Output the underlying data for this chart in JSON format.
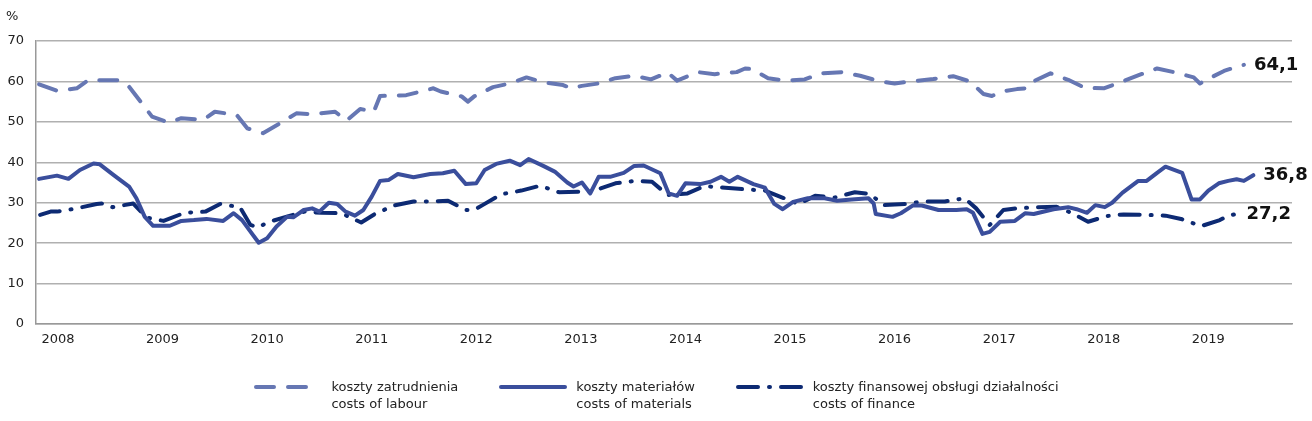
{
  "chart_data": {
    "type": "line",
    "ylabel": "%",
    "xlim": [
      2007.79,
      2019.8
    ],
    "xticks": [
      2008,
      2009,
      2010,
      2011,
      2012,
      2013,
      2014,
      2015,
      2016,
      2017,
      2018,
      2019
    ],
    "ylim": [
      0,
      70
    ],
    "yticks": [
      0,
      10,
      20,
      30,
      40,
      50,
      60,
      70
    ],
    "grid": "y",
    "legend": "bottom",
    "marker": "none",
    "series": [
      {
        "name": "koszty zatrudnienia\ncosts of labour",
        "color": "#6677b3",
        "line_style": "dashed",
        "x": [
          2007.82,
          2007.99,
          2008.18,
          2008.29,
          2008.58,
          2008.68,
          2008.79,
          2008.9,
          2009.06,
          2009.18,
          2009.39,
          2009.5,
          2009.71,
          2009.81,
          2009.96,
          2010.12,
          2010.28,
          2010.44,
          2010.65,
          2010.76,
          2010.89,
          2011.02,
          2011.08,
          2011.33,
          2011.59,
          2011.66,
          2011.86,
          2011.92,
          2011.98,
          2012.16,
          2012.32,
          2012.48,
          2012.64,
          2012.83,
          2012.91,
          2013.01,
          2013.17,
          2013.33,
          2013.51,
          2013.67,
          2013.83,
          2013.92,
          2014.12,
          2014.28,
          2014.49,
          2014.57,
          2014.63,
          2014.79,
          2014.95,
          2015.14,
          2015.3,
          2015.49,
          2015.67,
          2015.86,
          2016.0,
          2016.19,
          2016.37,
          2016.56,
          2016.72,
          2016.85,
          2016.93,
          2017.02,
          2017.17,
          2017.26,
          2017.31,
          2017.49,
          2017.66,
          2017.82,
          2018.0,
          2018.16,
          2018.34,
          2018.51,
          2018.67,
          2018.86,
          2018.92,
          2018.99,
          2019.15,
          2019.27,
          2019.34
        ],
        "values": [
          59.3,
          57.7,
          58.3,
          60.3,
          60.3,
          58.7,
          55.0,
          51.3,
          49.8,
          50.9,
          50.5,
          52.5,
          51.7,
          48.4,
          47.2,
          49.6,
          52.1,
          51.9,
          52.5,
          50.3,
          53.2,
          52.5,
          56.4,
          56.6,
          58.3,
          57.5,
          56.3,
          55.0,
          56.3,
          58.6,
          59.5,
          61.0,
          59.8,
          59.1,
          58.3,
          58.9,
          59.5,
          60.8,
          61.4,
          60.5,
          62.2,
          60.2,
          62.3,
          61.8,
          62.3,
          63.2,
          63.1,
          60.8,
          60.2,
          60.5,
          62.0,
          62.3,
          61.4,
          60.0,
          59.5,
          60.1,
          60.6,
          61.3,
          60.0,
          56.9,
          56.4,
          57.5,
          58.1,
          58.3,
          59.8,
          62.0,
          60.4,
          58.4,
          58.3,
          59.8,
          61.6,
          63.2,
          62.3,
          61.0,
          59.5,
          60.5,
          62.6,
          63.6,
          64.1
        ]
      },
      {
        "name": "koszty materiałów\ncosts of materials",
        "color": "#3a4e9c",
        "line_style": "solid",
        "x": [
          2007.82,
          2007.99,
          2008.1,
          2008.21,
          2008.34,
          2008.4,
          2008.53,
          2008.68,
          2008.75,
          2008.83,
          2008.91,
          2009.07,
          2009.18,
          2009.3,
          2009.42,
          2009.58,
          2009.68,
          2009.76,
          2009.92,
          2010.0,
          2010.09,
          2010.19,
          2010.25,
          2010.35,
          2010.43,
          2010.5,
          2010.59,
          2010.67,
          2010.75,
          2010.84,
          2010.92,
          2011.0,
          2011.08,
          2011.16,
          2011.25,
          2011.4,
          2011.56,
          2011.68,
          2011.79,
          2011.9,
          2012.0,
          2012.08,
          2012.19,
          2012.32,
          2012.42,
          2012.5,
          2012.64,
          2012.75,
          2012.87,
          2012.93,
          2013.01,
          2013.09,
          2013.17,
          2013.28,
          2013.41,
          2013.51,
          2013.6,
          2013.76,
          2013.84,
          2013.92,
          2014.0,
          2014.14,
          2014.24,
          2014.34,
          2014.42,
          2014.5,
          2014.65,
          2014.76,
          2014.85,
          2014.93,
          2015.03,
          2015.17,
          2015.33,
          2015.45,
          2015.59,
          2015.75,
          2015.8,
          2015.82,
          2015.98,
          2016.06,
          2016.18,
          2016.26,
          2016.42,
          2016.59,
          2016.69,
          2016.75,
          2016.84,
          2016.91,
          2017.01,
          2017.15,
          2017.25,
          2017.33,
          2017.52,
          2017.66,
          2017.74,
          2017.84,
          2017.92,
          2018.01,
          2018.08,
          2018.18,
          2018.33,
          2018.41,
          2018.51,
          2018.59,
          2018.75,
          2018.84,
          2018.92,
          2019.0,
          2019.1,
          2019.19,
          2019.27,
          2019.34,
          2019.43
        ],
        "values": [
          35.9,
          36.7,
          35.9,
          38.1,
          39.7,
          39.5,
          36.9,
          34.0,
          31.1,
          26.5,
          24.3,
          24.3,
          25.5,
          25.7,
          26.0,
          25.5,
          27.4,
          25.7,
          20.1,
          21.2,
          24.1,
          26.5,
          26.4,
          28.2,
          28.6,
          27.8,
          30.0,
          29.7,
          27.8,
          26.8,
          28.2,
          31.5,
          35.4,
          35.6,
          37.1,
          36.3,
          37.1,
          37.3,
          37.9,
          34.6,
          34.8,
          38.1,
          39.6,
          40.4,
          39.3,
          40.8,
          39.1,
          37.7,
          35.0,
          34.0,
          35.0,
          32.3,
          36.4,
          36.4,
          37.4,
          39.1,
          39.2,
          37.3,
          32.3,
          31.7,
          34.8,
          34.6,
          35.2,
          36.4,
          35.2,
          36.4,
          34.6,
          33.7,
          29.7,
          28.4,
          30.2,
          31.1,
          31.1,
          30.5,
          30.8,
          31.1,
          29.8,
          27.2,
          26.5,
          27.4,
          29.4,
          29.3,
          28.2,
          28.2,
          28.4,
          27.5,
          22.3,
          22.8,
          25.3,
          25.5,
          27.4,
          27.2,
          28.4,
          28.9,
          28.4,
          27.5,
          29.4,
          28.9,
          30.0,
          32.5,
          35.4,
          35.4,
          37.4,
          38.9,
          37.4,
          30.8,
          30.8,
          33.0,
          34.8,
          35.4,
          35.8,
          35.4,
          36.8
        ]
      },
      {
        "name": "koszty finansowej obsługi działalności\ncosts of finance",
        "color": "#0d2a73",
        "line_style": "dashdot",
        "x": [
          2007.83,
          2007.93,
          2007.99,
          2008.18,
          2008.37,
          2008.42,
          2008.52,
          2008.72,
          2008.85,
          2009.01,
          2009.21,
          2009.41,
          2009.55,
          2009.74,
          2009.84,
          2009.92,
          2010.0,
          2010.18,
          2010.36,
          2010.52,
          2010.71,
          2010.9,
          2011.03,
          2011.21,
          2011.4,
          2011.56,
          2011.73,
          2011.9,
          2011.98,
          2012.06,
          2012.24,
          2012.43,
          2012.61,
          2012.79,
          2012.98,
          2013.09,
          2013.14,
          2013.33,
          2013.52,
          2013.68,
          2013.83,
          2014.02,
          2014.18,
          2014.38,
          2014.58,
          2014.76,
          2015.08,
          2015.24,
          2015.43,
          2015.62,
          2015.76,
          2015.9,
          2016.11,
          2016.27,
          2016.48,
          2016.67,
          2016.78,
          2016.91,
          2017.04,
          2017.17,
          2017.37,
          2017.55,
          2017.69,
          2017.85,
          2018.03,
          2018.19,
          2018.39,
          2018.59,
          2018.75,
          2018.93,
          2019.11,
          2019.19,
          2019.27
        ],
        "values": [
          27.0,
          27.8,
          27.8,
          28.6,
          29.7,
          29.8,
          28.9,
          29.8,
          26.3,
          25.5,
          27.5,
          27.8,
          29.7,
          28.9,
          24.5,
          23.9,
          25.1,
          26.5,
          27.8,
          27.5,
          27.4,
          25.1,
          27.2,
          29.3,
          30.3,
          30.3,
          30.5,
          28.2,
          28.2,
          29.4,
          32.1,
          33.0,
          34.2,
          32.6,
          32.7,
          32.7,
          33.1,
          34.8,
          35.4,
          35.2,
          31.9,
          32.3,
          34.1,
          33.7,
          33.3,
          33.0,
          29.7,
          31.7,
          31.3,
          32.6,
          32.2,
          29.4,
          29.7,
          30.3,
          30.3,
          31.1,
          28.6,
          24.5,
          28.2,
          28.6,
          28.9,
          29.0,
          27.5,
          25.3,
          26.7,
          27.1,
          27.0,
          26.8,
          25.9,
          24.2,
          25.7,
          26.8,
          27.2
        ]
      }
    ],
    "annotations": [
      {
        "text": "64,1",
        "x": 2019.34,
        "y": 64.1
      },
      {
        "text": "36,8",
        "x": 2019.43,
        "y": 36.8
      },
      {
        "text": "27,2",
        "x": 2019.27,
        "y": 27.2
      }
    ]
  }
}
